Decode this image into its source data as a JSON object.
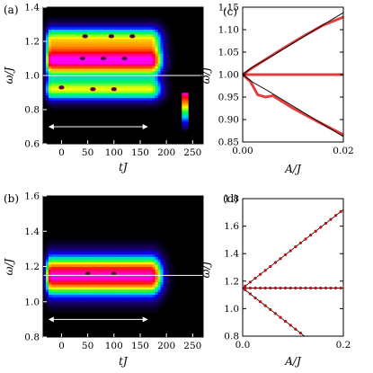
{
  "colors": {
    "heatmap_ramp": [
      "#000000",
      "#1a0070",
      "#0000ff",
      "#00c8ff",
      "#00ff40",
      "#ffff00",
      "#ff8000",
      "#ff0000",
      "#ff00ff"
    ],
    "guide_line": "#ffffff",
    "numeric_curve": "#e04040",
    "analytic_curve": "#000000",
    "numeric_points": "#c01010"
  },
  "chart_data": [
    {
      "panel_label": "(a)",
      "type": "heatmap",
      "xlabel": "tJ",
      "ylabel": "ω/J",
      "xlim": [
        -35,
        270
      ],
      "ylim": [
        0.6,
        1.4
      ],
      "xticks": [
        0,
        50,
        100,
        150,
        200,
        250
      ],
      "yticks": [
        0.6,
        0.8,
        1.0,
        1.2,
        1.4
      ],
      "colorbar": {
        "ticks": [
          "1",
          "0"
        ],
        "range": [
          0,
          1
        ]
      },
      "horizontal_line_y": 1.0,
      "arrow_x": [
        -25,
        165
      ],
      "arrow_y": 0.7,
      "active_window_t": [
        -20,
        170
      ],
      "blobs": [
        {
          "center": 1.09,
          "sigma": 0.06,
          "amp": 1.0
        },
        {
          "center": 0.92,
          "sigma": 0.045,
          "amp": 0.6
        },
        {
          "center": 1.22,
          "sigma": 0.05,
          "amp": 0.55
        }
      ],
      "dark_spots": [
        {
          "t": 45,
          "w": 1.23
        },
        {
          "t": 95,
          "w": 1.23
        },
        {
          "t": 135,
          "w": 1.23
        },
        {
          "t": 40,
          "w": 1.1
        },
        {
          "t": 80,
          "w": 1.1
        },
        {
          "t": 120,
          "w": 1.1
        },
        {
          "t": 0,
          "w": 0.93
        },
        {
          "t": 60,
          "w": 0.92
        },
        {
          "t": 100,
          "w": 0.92
        }
      ]
    },
    {
      "panel_label": "(c)",
      "type": "line",
      "xlabel": "A/J",
      "ylabel": "ω̃/J",
      "xlim": [
        0,
        0.02
      ],
      "ylim": [
        0.85,
        1.15
      ],
      "xticks": [
        0.0,
        0.02
      ],
      "xtick_labels": [
        "0.00",
        "0.02"
      ],
      "yticks": [
        0.85,
        0.9,
        0.95,
        1.0,
        1.05,
        1.1,
        1.15
      ],
      "ytick_labels": [
        "0.85",
        "0.90",
        "0.95",
        "1.00",
        "1.05",
        "1.10",
        "1.15"
      ],
      "analytic_upper": {
        "x": [
          0.0,
          0.002,
          0.005,
          0.01,
          0.015,
          0.02
        ],
        "y": [
          1.0,
          1.017,
          1.036,
          1.07,
          1.104,
          1.138
        ]
      },
      "analytic_lower": {
        "x": [
          0.0,
          0.002,
          0.005,
          0.01,
          0.015,
          0.02
        ],
        "y": [
          1.0,
          0.983,
          0.964,
          0.93,
          0.896,
          0.862
        ]
      },
      "numeric_upper": {
        "x": [
          0.0,
          0.0015,
          0.004,
          0.008,
          0.012,
          0.016,
          0.02
        ],
        "y": [
          1.0,
          1.012,
          1.03,
          1.058,
          1.085,
          1.11,
          1.128
        ]
      },
      "numeric_lower": {
        "x": [
          0.0,
          0.0015,
          0.003,
          0.0045,
          0.006,
          0.01,
          0.015,
          0.02
        ],
        "y": [
          1.0,
          0.985,
          0.955,
          0.95,
          0.953,
          0.925,
          0.895,
          0.866
        ]
      },
      "numeric_middle": {
        "x": [
          0.0,
          0.02
        ],
        "y": [
          1.0,
          1.0
        ]
      }
    },
    {
      "panel_label": "(b)",
      "type": "heatmap",
      "xlabel": "tJ",
      "ylabel": "ω/J",
      "xlim": [
        -35,
        270
      ],
      "ylim": [
        0.8,
        1.6
      ],
      "xticks": [
        0,
        50,
        100,
        150,
        200,
        250
      ],
      "yticks": [
        0.8,
        1.0,
        1.2,
        1.4,
        1.6
      ],
      "horizontal_line_y": 1.15,
      "arrow_x": [
        -25,
        165
      ],
      "arrow_y": 0.9,
      "active_window_t": [
        -20,
        170
      ],
      "blobs": [
        {
          "center": 1.15,
          "sigma": 0.075,
          "amp": 1.0
        }
      ],
      "dark_spots": [
        {
          "t": 50,
          "w": 1.16
        },
        {
          "t": 100,
          "w": 1.16
        }
      ]
    },
    {
      "panel_label": "(d)",
      "type": "scatter",
      "xlabel": "A/J",
      "ylabel": "ω̃/J",
      "xlim": [
        0,
        0.2
      ],
      "ylim": [
        0.8,
        1.8
      ],
      "xticks": [
        0.0,
        0.2
      ],
      "xtick_labels": [
        "0.0",
        "0.2"
      ],
      "yticks": [
        0.8,
        1.0,
        1.2,
        1.4,
        1.6,
        1.8
      ],
      "ytick_labels": [
        "0.8",
        "1.0",
        "1.2",
        "1.4",
        "1.6",
        "1.8"
      ],
      "center": 1.15,
      "slope": 2.85,
      "analytic_lines": [
        {
          "x": [
            0.0,
            0.2
          ],
          "y": [
            1.15,
            1.72
          ]
        },
        {
          "x": [
            0.0,
            0.2
          ],
          "y": [
            1.15,
            0.58
          ]
        },
        {
          "x": [
            0.0,
            0.2
          ],
          "y": [
            1.15,
            1.15
          ]
        }
      ],
      "point_x": [
        0.005,
        0.015,
        0.025,
        0.035,
        0.045,
        0.055,
        0.065,
        0.075,
        0.085,
        0.095,
        0.105,
        0.115,
        0.125,
        0.135,
        0.145,
        0.155,
        0.165,
        0.175,
        0.185,
        0.195
      ]
    }
  ]
}
